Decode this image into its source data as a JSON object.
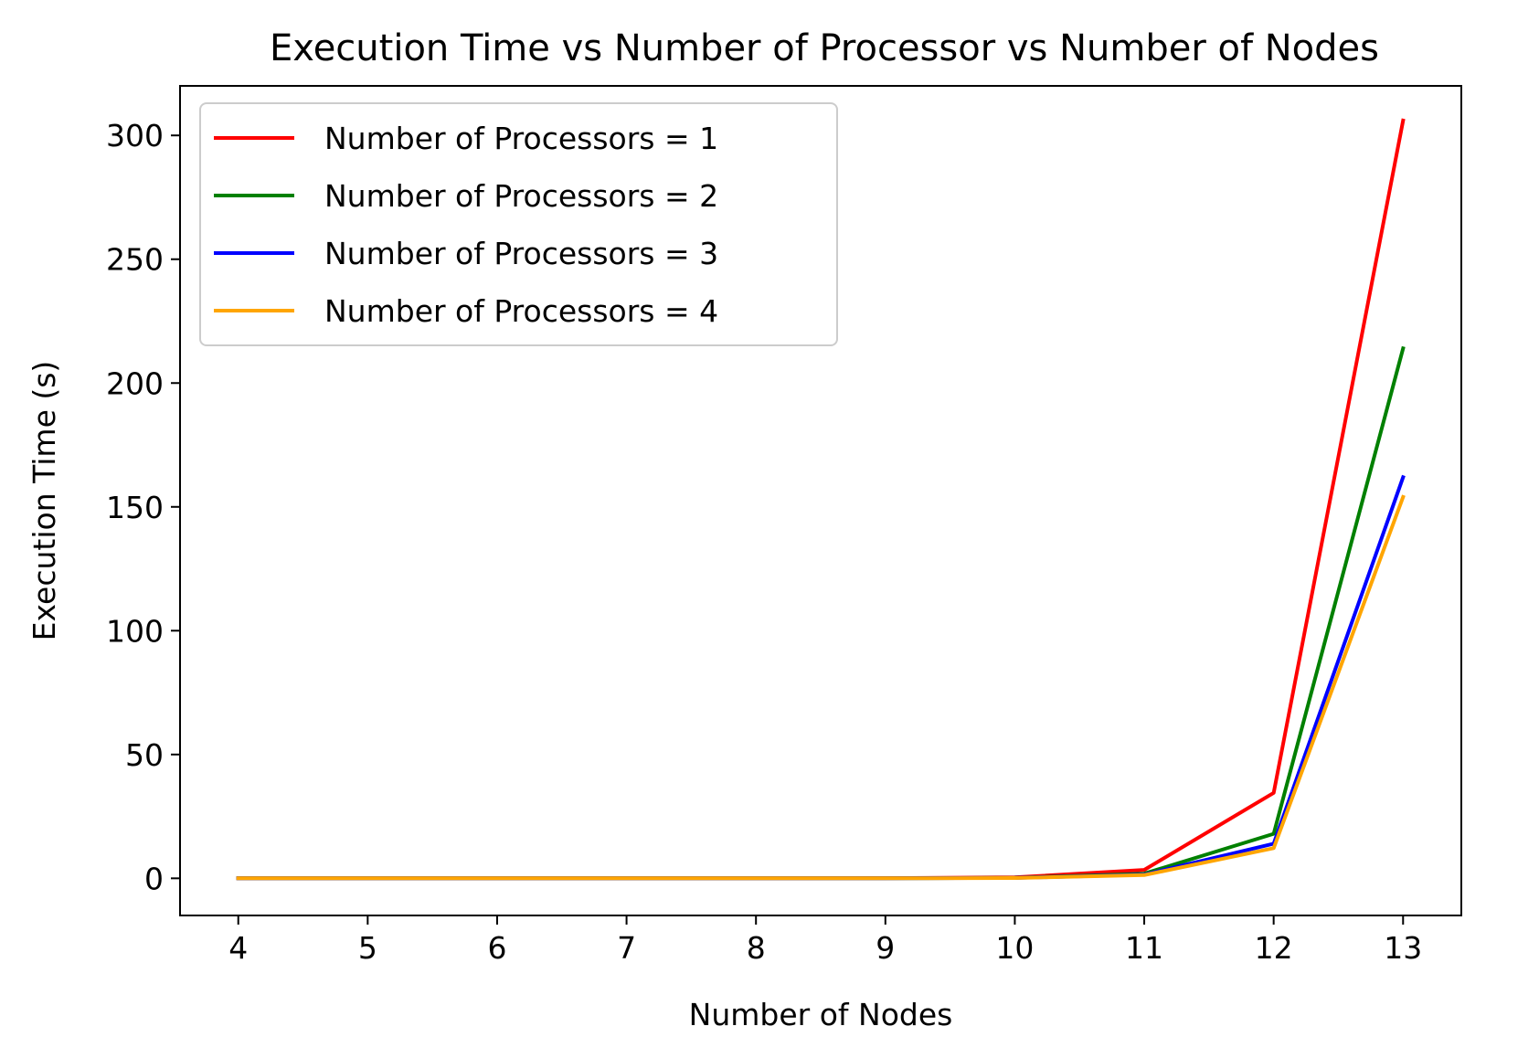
{
  "chart_data": {
    "type": "line",
    "title": "Execution Time vs Number of Processor vs Number of Nodes",
    "xlabel": "Number of Nodes",
    "ylabel": "Execution Time (s)",
    "x": [
      4,
      5,
      6,
      7,
      8,
      9,
      10,
      11,
      12,
      13
    ],
    "xlim": [
      3.55,
      13.45
    ],
    "ylim": [
      -15,
      320
    ],
    "xticks": [
      "4",
      "5",
      "6",
      "7",
      "8",
      "9",
      "10",
      "11",
      "12",
      "13"
    ],
    "yticks": [
      "0",
      "50",
      "100",
      "150",
      "200",
      "250",
      "300"
    ],
    "grid": false,
    "legend_position": "upper left",
    "series": [
      {
        "name": "Number of Processors = 1",
        "color": "#ff0000",
        "values": [
          0,
          0,
          0,
          0,
          0,
          0.1,
          0.4,
          3.4,
          34.5,
          306
        ]
      },
      {
        "name": "Number of Processors = 2",
        "color": "#008000",
        "values": [
          0,
          0,
          0,
          0,
          0,
          0.05,
          0.2,
          1.9,
          18,
          214
        ]
      },
      {
        "name": "Number of Processors = 3",
        "color": "#0000ff",
        "values": [
          0,
          0,
          0,
          0,
          0,
          0.03,
          0.15,
          1.5,
          14,
          162
        ]
      },
      {
        "name": "Number of Processors = 4",
        "color": "#ffa500",
        "values": [
          0,
          0,
          0,
          0,
          0,
          0.03,
          0.12,
          1.3,
          12.2,
          154
        ]
      }
    ]
  }
}
